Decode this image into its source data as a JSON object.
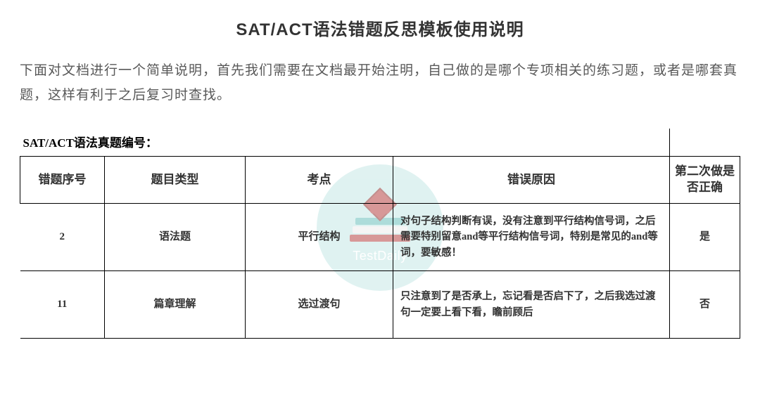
{
  "title": "SAT/ACT语法错题反思模板使用说明",
  "intro": "下面对文档进行一个简单说明，首先我们需要在文档最开始注明，自己做的是哪个专项相关的练习题，或者是哪套真题，这样有利于之后复习时查找。",
  "table": {
    "caption": "SAT/ACT语法真题编号：",
    "columns": {
      "no": "错题序号",
      "type": "题目类型",
      "pt": "考点",
      "rsn": "错误原因",
      "second": "第二次做是否正确"
    },
    "rows": [
      {
        "no": "2",
        "type": "语法题",
        "pt": "平行结构",
        "rsn": "对句子结构判断有误，没有注意到平行结构信号词，之后需要特别留意and等平行结构信号词，特别是常见的and等词，要敏感！",
        "second": "是"
      },
      {
        "no": "11",
        "type": "篇章理解",
        "pt": "选过渡句",
        "rsn": "只注意到了是否承上，忘记看是否启下了，之后我选过渡句一定要上看下看，瞻前顾后",
        "second": "否"
      }
    ]
  },
  "watermark_text": "TestDaily",
  "colors": {
    "text_main": "#333333",
    "text_sub": "#595959",
    "border": "#000000",
    "watermark_bg": "#c6e8e6",
    "watermark_text": "#ffffff"
  }
}
